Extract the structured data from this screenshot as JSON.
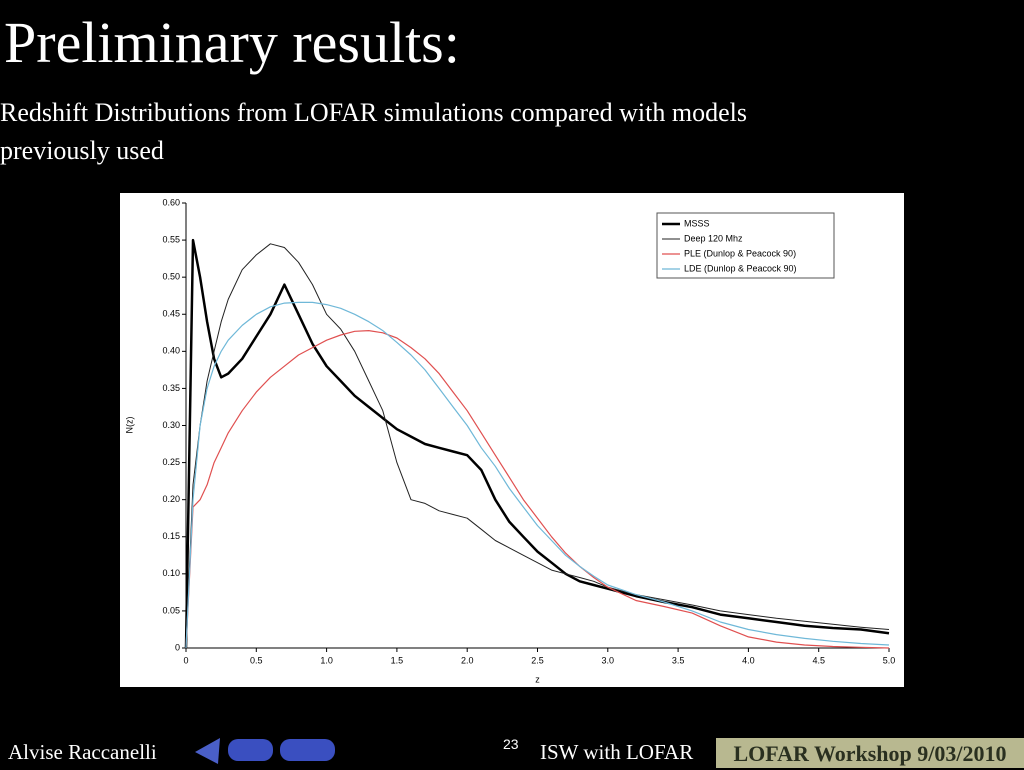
{
  "slide": {
    "title": "Preliminary results:",
    "subtitle": "Redshift Distributions from LOFAR simulations compared with models previously used",
    "author": "Alvise Raccanelli",
    "page_number": "23",
    "talk": "ISW with LOFAR",
    "event": "LOFAR Workshop 9/03/2010"
  },
  "chart_data": {
    "type": "line",
    "xlabel": "z",
    "ylabel": "N(z)",
    "x": [
      0,
      0.05,
      0.1,
      0.15,
      0.2,
      0.25,
      0.3,
      0.4,
      0.5,
      0.6,
      0.7,
      0.8,
      0.9,
      1.0,
      1.1,
      1.2,
      1.3,
      1.4,
      1.5,
      1.6,
      1.7,
      1.8,
      1.9,
      2.0,
      2.1,
      2.2,
      2.3,
      2.4,
      2.5,
      2.6,
      2.7,
      2.8,
      2.9,
      3.0,
      3.2,
      3.4,
      3.6,
      3.8,
      4.0,
      4.2,
      4.4,
      4.6,
      4.8,
      5.0
    ],
    "series": [
      {
        "name": "MSSS",
        "color": "#000000",
        "values": [
          0,
          0.55,
          0.5,
          0.44,
          0.39,
          0.365,
          0.37,
          0.39,
          0.42,
          0.45,
          0.49,
          0.45,
          0.41,
          0.38,
          0.36,
          0.34,
          0.325,
          0.31,
          0.295,
          0.285,
          0.275,
          0.27,
          0.265,
          0.26,
          0.24,
          0.2,
          0.17,
          0.15,
          0.13,
          0.115,
          0.1,
          0.09,
          0.085,
          0.08,
          0.07,
          0.062,
          0.055,
          0.045,
          0.04,
          0.035,
          0.03,
          0.027,
          0.025,
          0.02
        ]
      },
      {
        "name": "Deep 120 Mhz",
        "color": "#222222",
        "values": [
          0,
          0.22,
          0.3,
          0.36,
          0.4,
          0.44,
          0.47,
          0.51,
          0.53,
          0.545,
          0.54,
          0.52,
          0.49,
          0.45,
          0.43,
          0.4,
          0.36,
          0.32,
          0.25,
          0.2,
          0.195,
          0.185,
          0.18,
          0.175,
          0.16,
          0.145,
          0.135,
          0.125,
          0.115,
          0.105,
          0.1,
          0.095,
          0.09,
          0.082,
          0.072,
          0.065,
          0.058,
          0.05,
          0.045,
          0.04,
          0.036,
          0.032,
          0.028,
          0.025
        ]
      },
      {
        "name": "PLE (Dunlop & Peacock 90)",
        "color": "#e05050",
        "values": [
          0,
          0.19,
          0.2,
          0.22,
          0.25,
          0.27,
          0.29,
          0.32,
          0.345,
          0.365,
          0.38,
          0.395,
          0.405,
          0.415,
          0.422,
          0.427,
          0.428,
          0.425,
          0.418,
          0.405,
          0.39,
          0.37,
          0.345,
          0.32,
          0.29,
          0.26,
          0.23,
          0.2,
          0.175,
          0.15,
          0.128,
          0.11,
          0.095,
          0.082,
          0.064,
          0.056,
          0.047,
          0.03,
          0.015,
          0.008,
          0.004,
          0.002,
          0.001,
          0
        ]
      },
      {
        "name": "LDE (Dunlop & Peacock 90)",
        "color": "#6fb8d8",
        "values": [
          0,
          0.2,
          0.3,
          0.35,
          0.38,
          0.4,
          0.415,
          0.435,
          0.45,
          0.46,
          0.465,
          0.466,
          0.466,
          0.463,
          0.458,
          0.45,
          0.44,
          0.428,
          0.412,
          0.395,
          0.375,
          0.35,
          0.325,
          0.3,
          0.27,
          0.245,
          0.215,
          0.19,
          0.165,
          0.145,
          0.125,
          0.11,
          0.097,
          0.085,
          0.072,
          0.062,
          0.05,
          0.035,
          0.025,
          0.018,
          0.013,
          0.009,
          0.006,
          0.004
        ]
      }
    ],
    "xlim": [
      0,
      5
    ],
    "xticks": [
      0,
      0.5,
      {
        "value": 1,
        "label": "1.0"
      },
      1.5,
      {
        "value": 2,
        "label": "2.0"
      },
      2.5,
      {
        "value": 3,
        "label": "3.0"
      },
      3.5,
      {
        "value": 4,
        "label": "4.0"
      },
      4.5,
      {
        "value": 5,
        "label": "5.0"
      }
    ],
    "ylim": [
      0,
      0.6
    ],
    "yticks": [
      0,
      0.05,
      {
        "value": 0.1,
        "label": "0.10"
      },
      0.15,
      {
        "value": 0.2,
        "label": "0.20"
      },
      0.25,
      {
        "value": 0.3,
        "label": "0.30"
      },
      0.35,
      {
        "value": 0.4,
        "label": "0.40"
      },
      0.45,
      {
        "value": 0.5,
        "label": "0.50"
      },
      0.55,
      {
        "value": 0.6,
        "label": "0.60"
      }
    ],
    "legend": "upper right"
  }
}
